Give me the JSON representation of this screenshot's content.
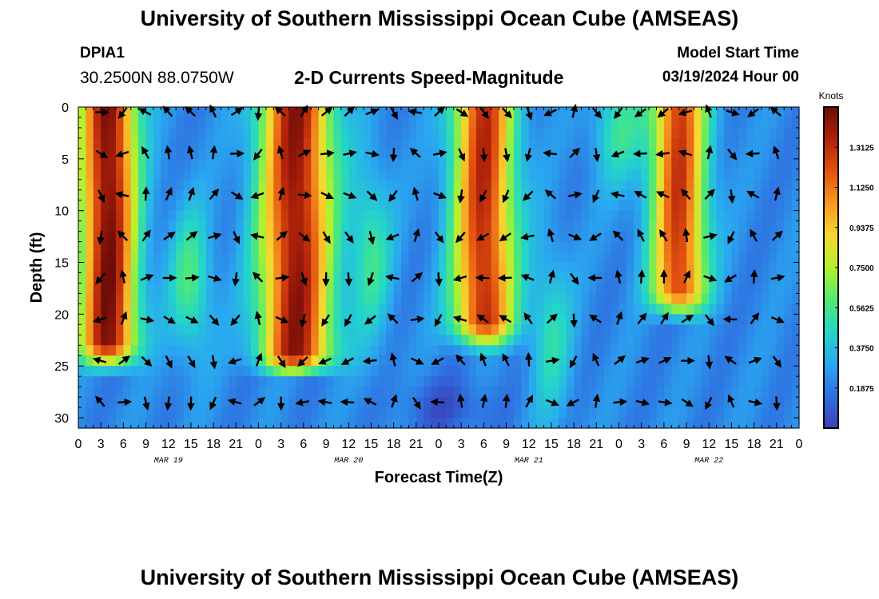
{
  "header": {
    "title": "University of Southern Mississippi Ocean Cube (AMSEAS)",
    "station_id": "DPIA1",
    "coordinates": "30.2500N  88.0750W",
    "plot_title": "2-D Currents Speed-Magnitude",
    "model_start_label": "Model Start Time",
    "model_start_value": "03/19/2024 Hour 00"
  },
  "footer": {
    "title": "University of Southern Mississippi Ocean Cube (AMSEAS)"
  },
  "colors": {
    "scale": [
      "#3b3fb8",
      "#2f6fe0",
      "#2aa8f0",
      "#24d6c8",
      "#52ea70",
      "#b4f02e",
      "#f5d830",
      "#f89820",
      "#e35210",
      "#b0220a",
      "#6e0c08"
    ]
  },
  "chart_data": {
    "type": "heatmap",
    "title": "2-D Currents Speed-Magnitude",
    "xlabel": "Forecast Time(Z)",
    "ylabel": "Depth (ft)",
    "x_ticks": [
      "0",
      "3",
      "6",
      "9",
      "12",
      "15",
      "18",
      "21",
      "0",
      "3",
      "6",
      "9",
      "12",
      "15",
      "18",
      "21",
      "0",
      "3",
      "6",
      "9",
      "12",
      "15",
      "18",
      "21",
      "0",
      "3",
      "6",
      "9",
      "12",
      "15",
      "18",
      "21",
      "0"
    ],
    "x_range_hours": [
      0,
      96
    ],
    "date_labels": [
      {
        "label": "MAR 19",
        "hour": 12
      },
      {
        "label": "MAR 20",
        "hour": 36
      },
      {
        "label": "MAR 21",
        "hour": 60
      },
      {
        "label": "MAR 22",
        "hour": 84
      }
    ],
    "y_ticks": [
      "0",
      "5",
      "10",
      "15",
      "20",
      "25",
      "30"
    ],
    "y_range": [
      0,
      31
    ],
    "colorbar": {
      "label": "Knots",
      "range": [
        0,
        1.5
      ],
      "ticks": [
        "1.3125",
        "1.1250",
        "0.9375",
        "0.7500",
        "0.5625",
        "0.3750",
        "0.1875"
      ]
    },
    "arrow_hours": [
      3,
      6,
      9,
      12,
      15,
      18,
      21,
      24,
      27,
      30,
      33,
      36,
      39,
      42,
      45,
      48,
      51,
      54,
      57,
      60,
      63,
      66,
      69,
      72,
      75,
      78,
      81,
      84,
      87,
      90,
      93
    ],
    "arrow_depths": [
      0.5,
      4.5,
      8.5,
      12.5,
      16.5,
      20.5,
      24.5,
      28.5
    ]
  }
}
